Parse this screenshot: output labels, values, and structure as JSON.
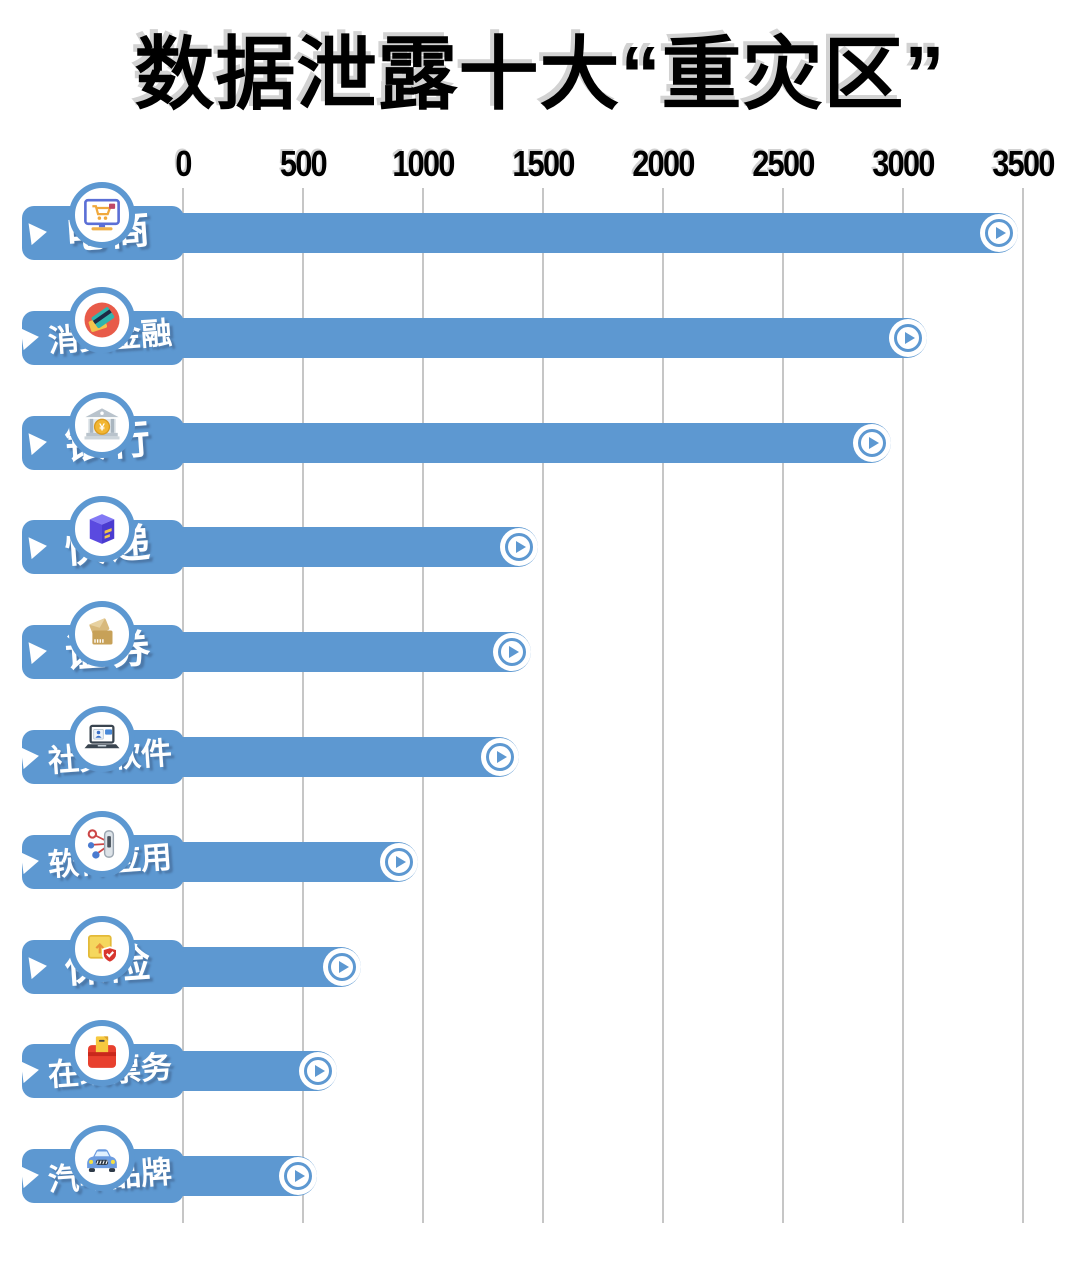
{
  "title": "数据泄露十大“重灾区”",
  "axis": {
    "tick_labels": [
      "0",
      "500",
      "1000",
      "1500",
      "2000",
      "2500",
      "3000",
      "3500"
    ]
  },
  "colors": {
    "bar_blue": "#5d98d1",
    "grid_gray": "#c6c6c6",
    "title_black": "#000000",
    "label_white": "#ffffff"
  },
  "chart_data": {
    "type": "bar",
    "orientation": "horizontal",
    "title": "数据泄露十大“重灾区”",
    "categories": [
      "电商",
      "消费金融",
      "银行",
      "快递",
      "证券",
      "社交软件",
      "软件应用",
      "保险",
      "在线票务",
      "汽车品牌"
    ],
    "values": [
      3480,
      3100,
      2950,
      1480,
      1450,
      1400,
      980,
      740,
      640,
      560
    ],
    "xlabel": "",
    "ylabel": "",
    "xlim": [
      0,
      3500
    ],
    "xticks": [
      0,
      500,
      1000,
      1500,
      2000,
      2500,
      3000,
      3500
    ],
    "grid": true,
    "legend": false
  },
  "rows": [
    {
      "label": "电商",
      "value": 3480,
      "icon": "ecommerce-icon"
    },
    {
      "label": "消费金融",
      "value": 3100,
      "icon": "consumer-finance-icon"
    },
    {
      "label": "银行",
      "value": 2950,
      "icon": "bank-icon"
    },
    {
      "label": "快递",
      "value": 1480,
      "icon": "delivery-icon"
    },
    {
      "label": "证券",
      "value": 1450,
      "icon": "securities-icon"
    },
    {
      "label": "社交软件",
      "value": 1400,
      "icon": "social-app-icon"
    },
    {
      "label": "软件应用",
      "value": 980,
      "icon": "software-app-icon"
    },
    {
      "label": "保险",
      "value": 740,
      "icon": "insurance-icon"
    },
    {
      "label": "在线票务",
      "value": 640,
      "icon": "ticketing-icon"
    },
    {
      "label": "汽车品牌",
      "value": 560,
      "icon": "car-brand-icon"
    }
  ]
}
